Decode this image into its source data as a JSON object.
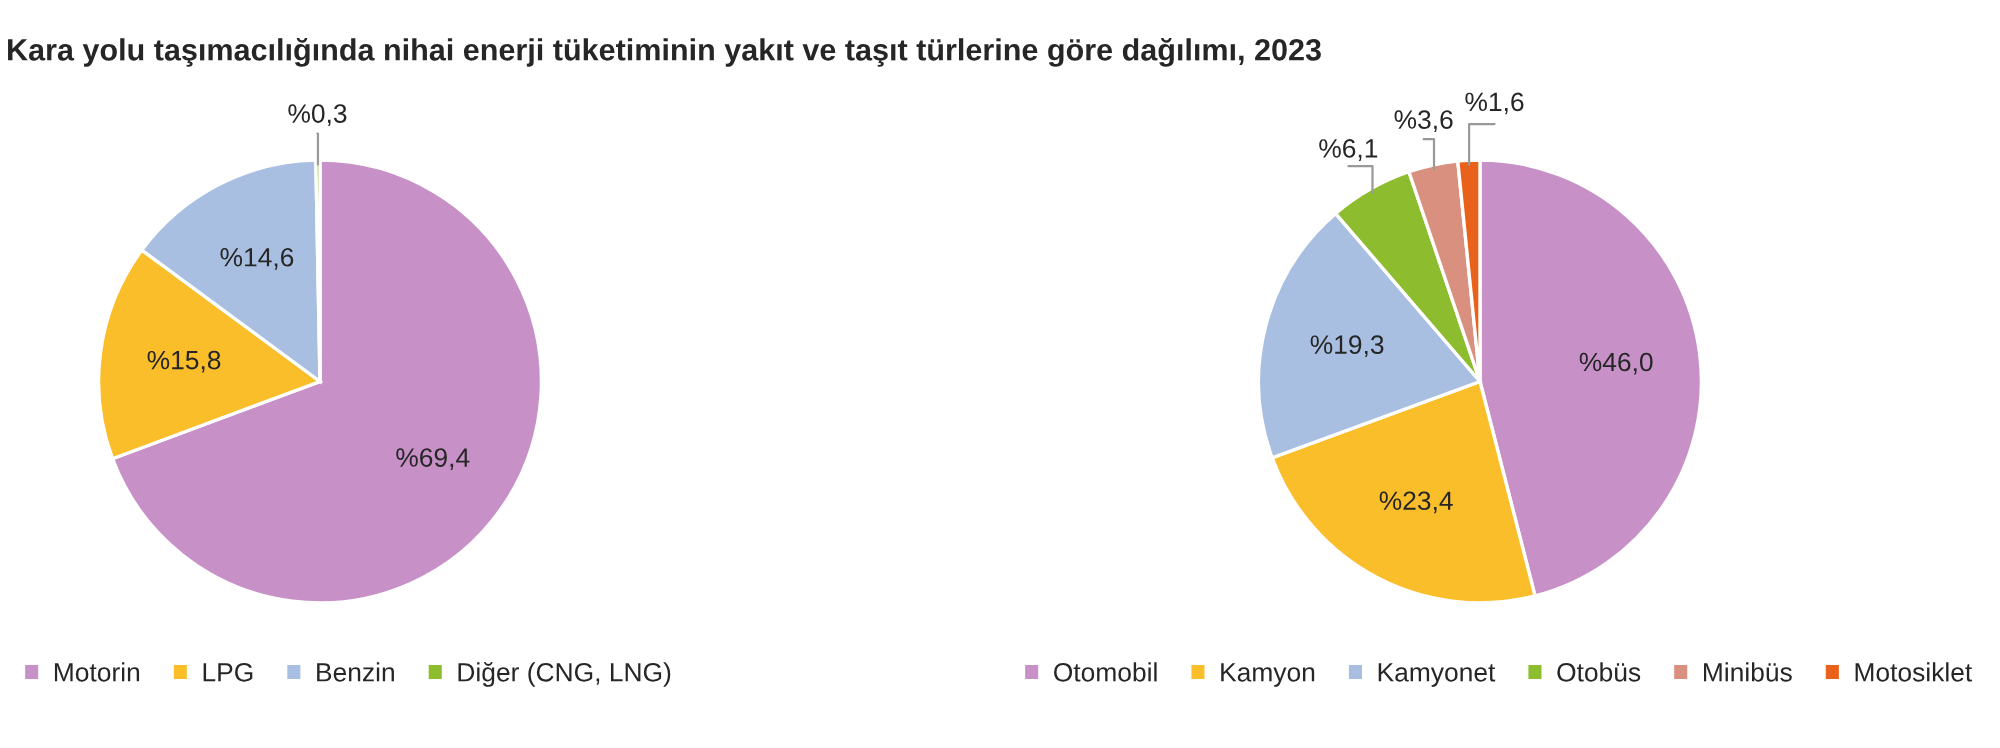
{
  "chart_data": [
    {
      "type": "pie",
      "title": "Kara yolu taşımacılığında nihai enerji tüketiminin yakıt ve taşıt türlerine göre dağılımı, 2023",
      "categories": [
        "Motorin",
        "LPG",
        "Benzin",
        "Diğer (CNG, LNG)"
      ],
      "values": [
        69.4,
        15.8,
        14.6,
        0.3
      ],
      "colors": [
        "#c791c7",
        "#fbbe2b",
        "#a8bfe1",
        "#8dbd2f"
      ],
      "value_labels": [
        "%69,4",
        "%15,8",
        "%14,6",
        "%0,3"
      ],
      "legend": "bottom"
    },
    {
      "type": "pie",
      "categories": [
        "Otomobil",
        "Kamyon",
        "Kamyonet",
        "Otobüs",
        "Minibüs",
        "Motosiklet"
      ],
      "values": [
        46.0,
        23.4,
        19.3,
        6.1,
        3.6,
        1.6
      ],
      "colors": [
        "#c791c7",
        "#fbbe2b",
        "#a8bfe1",
        "#8dbd2f",
        "#d9907f",
        "#e8621c"
      ],
      "value_labels": [
        "%46,0",
        "%23,4",
        "%19,3",
        "%6,1",
        "%3,6",
        "%1,6"
      ],
      "legend": "bottom"
    }
  ]
}
